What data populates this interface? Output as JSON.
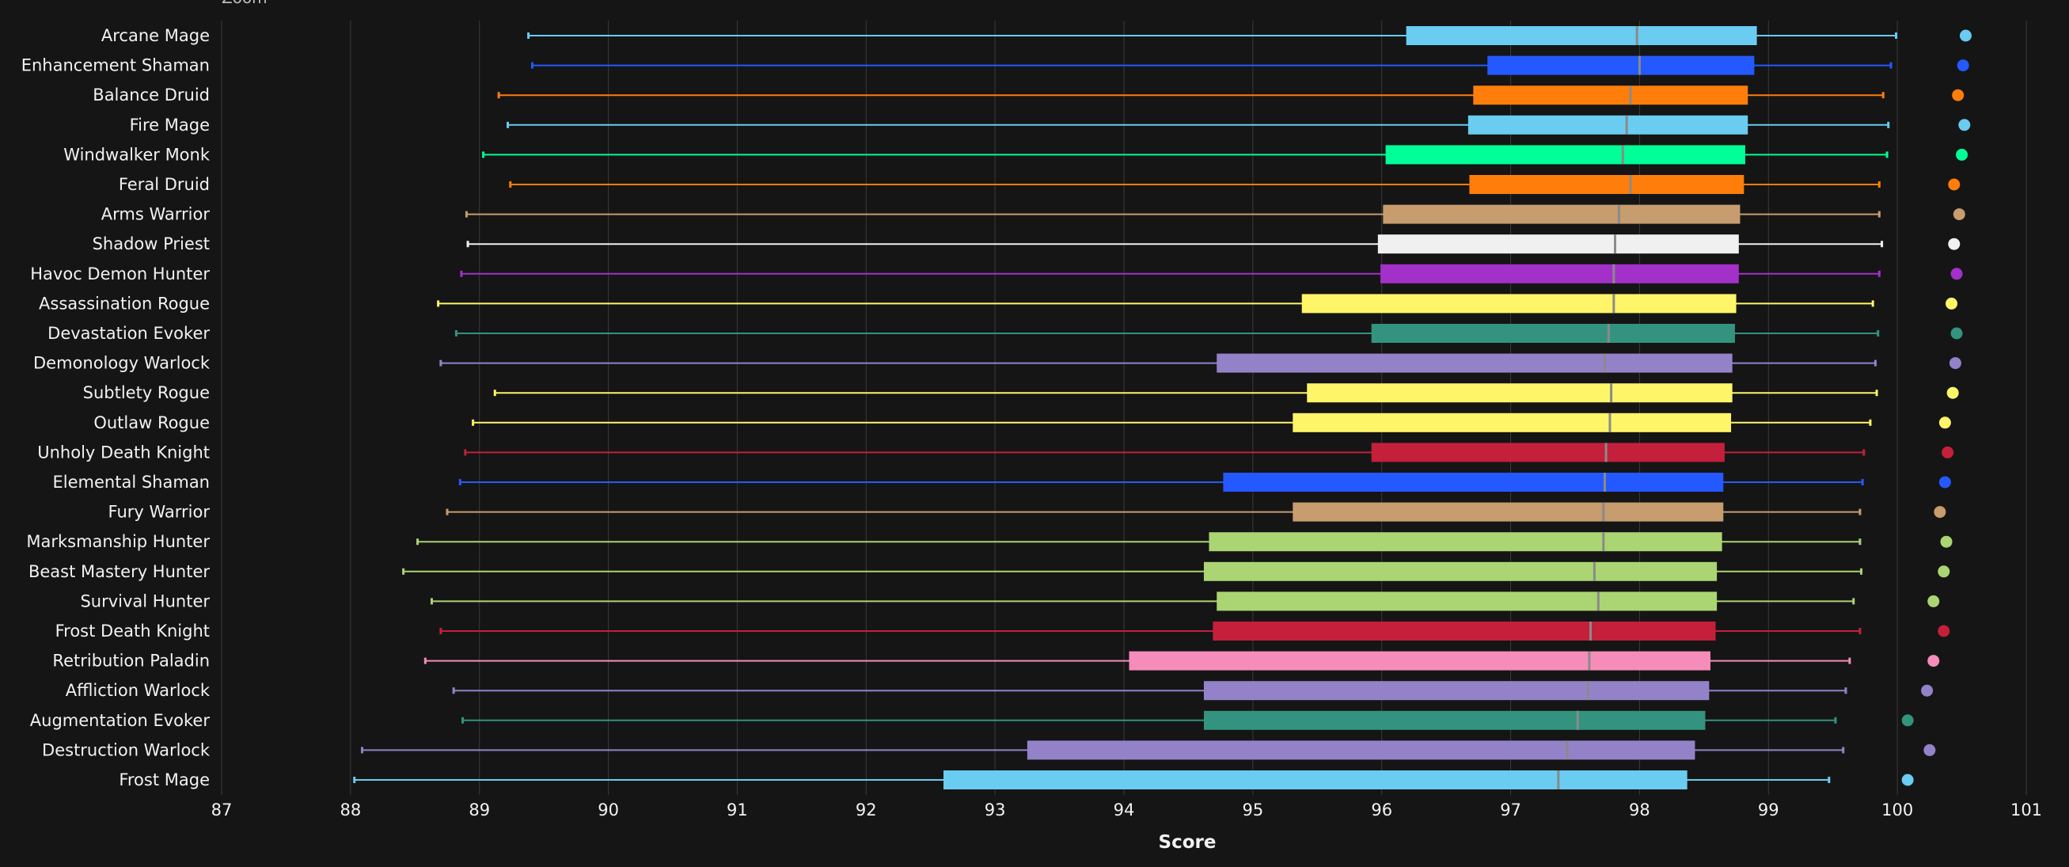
{
  "chart_data": {
    "type": "boxplot",
    "title": "",
    "zoom_label": "Zoom",
    "xlabel": "Score",
    "ylabel": "",
    "xlim": [
      87,
      101
    ],
    "xticks": [
      87,
      88,
      89,
      90,
      91,
      92,
      93,
      94,
      95,
      96,
      97,
      98,
      99,
      100,
      101
    ],
    "grid": true,
    "orientation": "horizontal",
    "series": [
      {
        "name": "Arcane Mage",
        "color": "#69CCF0",
        "min": 89.38,
        "q1": 96.19,
        "median": 97.98,
        "q3": 98.91,
        "max": 99.99,
        "mean": 100.53
      },
      {
        "name": "Enhancement Shaman",
        "color": "#2459FF",
        "min": 89.41,
        "q1": 96.82,
        "median": 98.0,
        "q3": 98.89,
        "max": 99.95,
        "mean": 100.51
      },
      {
        "name": "Balance Druid",
        "color": "#FF7D0A",
        "min": 89.15,
        "q1": 96.71,
        "median": 97.93,
        "q3": 98.84,
        "max": 99.89,
        "mean": 100.47
      },
      {
        "name": "Fire Mage",
        "color": "#69CCF0",
        "min": 89.22,
        "q1": 96.67,
        "median": 97.9,
        "q3": 98.84,
        "max": 99.93,
        "mean": 100.52
      },
      {
        "name": "Windwalker Monk",
        "color": "#00FF96",
        "min": 89.03,
        "q1": 96.03,
        "median": 97.87,
        "q3": 98.82,
        "max": 99.92,
        "mean": 100.5
      },
      {
        "name": "Feral Druid",
        "color": "#FF7D0A",
        "min": 89.24,
        "q1": 96.68,
        "median": 97.93,
        "q3": 98.81,
        "max": 99.86,
        "mean": 100.44
      },
      {
        "name": "Arms Warrior",
        "color": "#C79C6E",
        "min": 88.9,
        "q1": 96.01,
        "median": 97.84,
        "q3": 98.78,
        "max": 99.86,
        "mean": 100.48
      },
      {
        "name": "Shadow Priest",
        "color": "#F0F0F0",
        "min": 88.91,
        "q1": 95.97,
        "median": 97.81,
        "q3": 98.77,
        "max": 99.88,
        "mean": 100.44
      },
      {
        "name": "Havoc Demon Hunter",
        "color": "#A330C9",
        "min": 88.86,
        "q1": 95.99,
        "median": 97.8,
        "q3": 98.77,
        "max": 99.86,
        "mean": 100.46
      },
      {
        "name": "Assassination Rogue",
        "color": "#FFF569",
        "min": 88.68,
        "q1": 95.38,
        "median": 97.8,
        "q3": 98.75,
        "max": 99.81,
        "mean": 100.42
      },
      {
        "name": "Devastation Evoker",
        "color": "#33937F",
        "min": 88.82,
        "q1": 95.92,
        "median": 97.76,
        "q3": 98.74,
        "max": 99.85,
        "mean": 100.46
      },
      {
        "name": "Demonology Warlock",
        "color": "#9482C9",
        "min": 88.7,
        "q1": 94.72,
        "median": 97.73,
        "q3": 98.72,
        "max": 99.83,
        "mean": 100.45
      },
      {
        "name": "Subtlety Rogue",
        "color": "#FFF569",
        "min": 89.12,
        "q1": 95.42,
        "median": 97.78,
        "q3": 98.72,
        "max": 99.84,
        "mean": 100.43
      },
      {
        "name": "Outlaw Rogue",
        "color": "#FFF569",
        "min": 88.95,
        "q1": 95.31,
        "median": 97.77,
        "q3": 98.71,
        "max": 99.79,
        "mean": 100.37
      },
      {
        "name": "Unholy Death Knight",
        "color": "#C41F3B",
        "min": 88.89,
        "q1": 95.92,
        "median": 97.74,
        "q3": 98.66,
        "max": 99.74,
        "mean": 100.39
      },
      {
        "name": "Elemental Shaman",
        "color": "#2459FF",
        "min": 88.85,
        "q1": 94.77,
        "median": 97.73,
        "q3": 98.65,
        "max": 99.73,
        "mean": 100.37
      },
      {
        "name": "Fury Warrior",
        "color": "#C79C6E",
        "min": 88.75,
        "q1": 95.31,
        "median": 97.72,
        "q3": 98.65,
        "max": 99.71,
        "mean": 100.33
      },
      {
        "name": "Marksmanship Hunter",
        "color": "#ABD473",
        "min": 88.52,
        "q1": 94.66,
        "median": 97.72,
        "q3": 98.64,
        "max": 99.71,
        "mean": 100.38
      },
      {
        "name": "Beast Mastery Hunter",
        "color": "#ABD473",
        "min": 88.41,
        "q1": 94.62,
        "median": 97.65,
        "q3": 98.6,
        "max": 99.72,
        "mean": 100.36
      },
      {
        "name": "Survival Hunter",
        "color": "#ABD473",
        "min": 88.63,
        "q1": 94.72,
        "median": 97.68,
        "q3": 98.6,
        "max": 99.66,
        "mean": 100.28
      },
      {
        "name": "Frost Death Knight",
        "color": "#C41F3B",
        "min": 88.7,
        "q1": 94.69,
        "median": 97.62,
        "q3": 98.59,
        "max": 99.71,
        "mean": 100.36
      },
      {
        "name": "Retribution Paladin",
        "color": "#F58CBA",
        "min": 88.58,
        "q1": 94.04,
        "median": 97.61,
        "q3": 98.55,
        "max": 99.63,
        "mean": 100.28
      },
      {
        "name": "Affliction Warlock",
        "color": "#9482C9",
        "min": 88.8,
        "q1": 94.62,
        "median": 97.6,
        "q3": 98.54,
        "max": 99.6,
        "mean": 100.23
      },
      {
        "name": "Augmentation Evoker",
        "color": "#33937F",
        "min": 88.87,
        "q1": 94.62,
        "median": 97.52,
        "q3": 98.51,
        "max": 99.52,
        "mean": 100.08
      },
      {
        "name": "Destruction Warlock",
        "color": "#9482C9",
        "min": 88.09,
        "q1": 93.25,
        "median": 97.44,
        "q3": 98.43,
        "max": 99.58,
        "mean": 100.25
      },
      {
        "name": "Frost Mage",
        "color": "#69CCF0",
        "min": 88.03,
        "q1": 92.6,
        "median": 97.37,
        "q3": 98.37,
        "max": 99.47,
        "mean": 100.08
      }
    ]
  },
  "colors": {
    "background": "#151515",
    "grid": "#3a3a3a",
    "text": "#f2f2f2",
    "median_line": "#8a8a8a"
  }
}
